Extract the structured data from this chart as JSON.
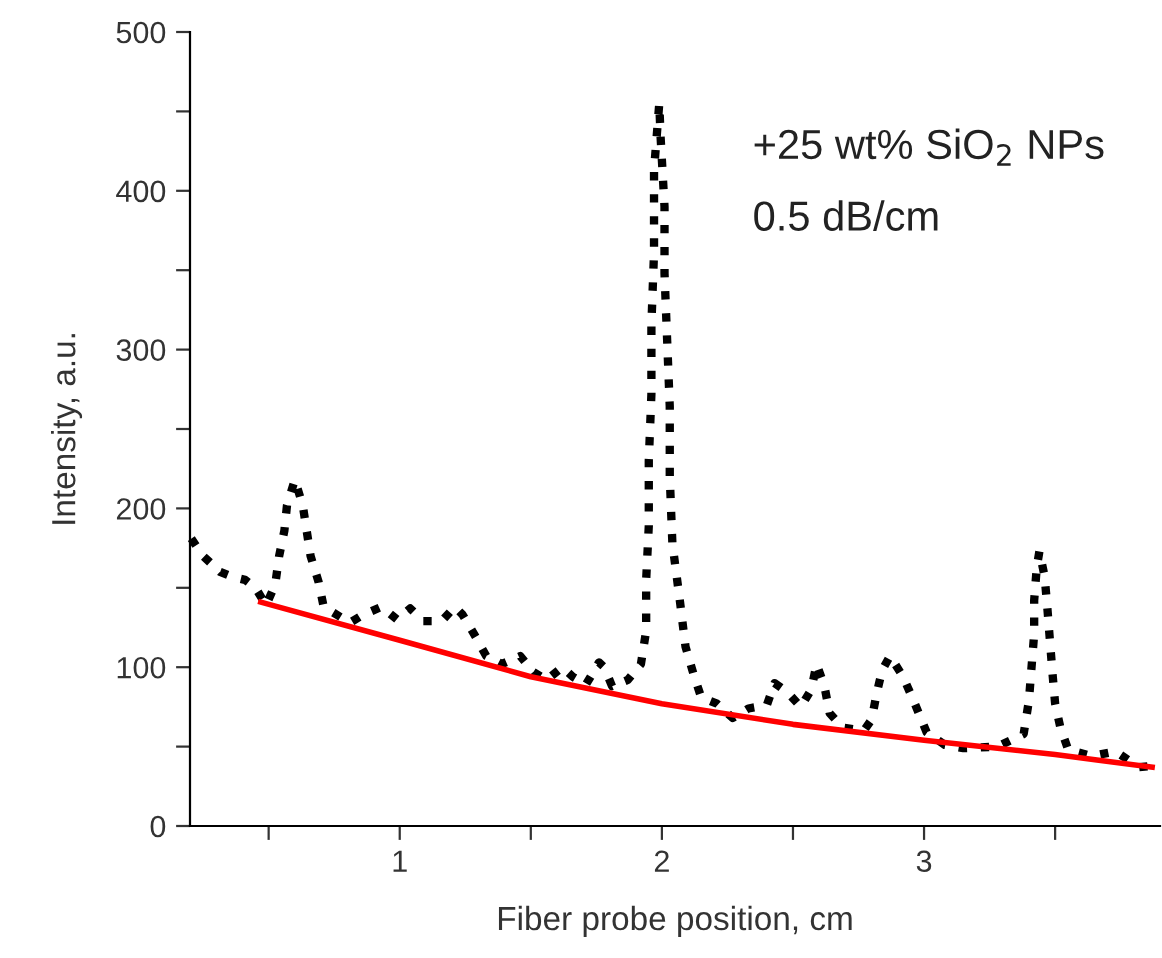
{
  "chart_data": {
    "type": "line",
    "xlabel": "Fiber probe position, cm",
    "ylabel": "Intensity, a.u.",
    "xlim": [
      0.2,
      3.9
    ],
    "ylim": [
      0,
      500
    ],
    "xticks": [
      {
        "value": 0.5,
        "label": null
      },
      1,
      {
        "value": 1.5,
        "label": null
      },
      2,
      {
        "value": 2.5,
        "label": null
      },
      3,
      {
        "value": 3.5,
        "label": null
      }
    ],
    "yticks": [
      0,
      {
        "value": 50,
        "label": null
      },
      100,
      {
        "value": 150,
        "label": null
      },
      200,
      {
        "value": 250,
        "label": null
      },
      300,
      {
        "value": 350,
        "label": null
      },
      400,
      {
        "value": 450,
        "label": null
      },
      500
    ],
    "grid": false,
    "legend": false,
    "annotations": [
      "+25 wt% SiO$_{2}$ NPs",
      "0.5 dB/cm"
    ],
    "series": [
      {
        "color": "#000000",
        "line_style": "dotted",
        "x": [
          0.205,
          0.25,
          0.315,
          0.36,
          0.41,
          0.45,
          0.49,
          0.525,
          0.54,
          0.56,
          0.57,
          0.6,
          0.63,
          0.645,
          0.66,
          0.69,
          0.71,
          0.76,
          0.81,
          0.86,
          0.93,
          0.99,
          1.04,
          1.09,
          1.16,
          1.21,
          1.24,
          1.29,
          1.33,
          1.39,
          1.46,
          1.51,
          1.56,
          1.62,
          1.66,
          1.71,
          1.76,
          1.78,
          1.81,
          1.87,
          1.92,
          1.94,
          1.94,
          1.95,
          1.95,
          1.96,
          1.96,
          1.97,
          1.97,
          1.99,
          1.995,
          2.01,
          2.01,
          2.02,
          2.03,
          2.03,
          2.04,
          2.07,
          2.09,
          2.12,
          2.15,
          2.21,
          2.27,
          2.33,
          2.4,
          2.43,
          2.48,
          2.53,
          2.57,
          2.59,
          2.62,
          2.64,
          2.69,
          2.77,
          2.8,
          2.82,
          2.84,
          2.87,
          2.92,
          2.96,
          3.01,
          3.08,
          3.15,
          3.28,
          3.38,
          3.4,
          3.41,
          3.42,
          3.42,
          3.43,
          3.44,
          3.46,
          3.47,
          3.48,
          3.49,
          3.5,
          3.52,
          3.55,
          3.64,
          3.73,
          3.82,
          3.88
        ],
        "values": [
          181,
          170,
          160,
          157,
          155,
          150,
          139,
          152,
          170,
          186,
          202,
          218,
          202,
          186,
          170,
          154,
          138,
          133,
          128,
          133,
          138,
          130,
          137,
          129,
          129,
          138,
          133,
          119,
          107,
          102,
          107,
          97,
          92,
          100,
          94,
          89,
          103,
          100,
          88,
          92,
          102,
          123,
          155,
          189,
          230,
          272,
          316,
          361,
          413,
          455,
          434,
          390,
          348,
          306,
          264,
          220,
          178,
          140,
          113,
          96,
          81,
          77,
          68,
          74,
          76,
          90,
          84,
          75,
          86,
          102,
          88,
          71,
          62,
          60,
          67,
          84,
          98,
          107,
          94,
          79,
          59,
          51,
          49,
          50,
          58,
          79,
          100,
          121,
          142,
          163,
          173,
          157,
          138,
          117,
          96,
          77,
          62,
          48,
          44,
          47,
          37,
          38
        ]
      },
      {
        "color": "#ff0000",
        "line_style": "solid",
        "x": [
          0.47,
          1,
          1.5,
          2,
          2.5,
          3,
          3.5,
          3.87
        ],
        "values": [
          141,
          117,
          94,
          77,
          64,
          54,
          45,
          37
        ]
      }
    ]
  }
}
